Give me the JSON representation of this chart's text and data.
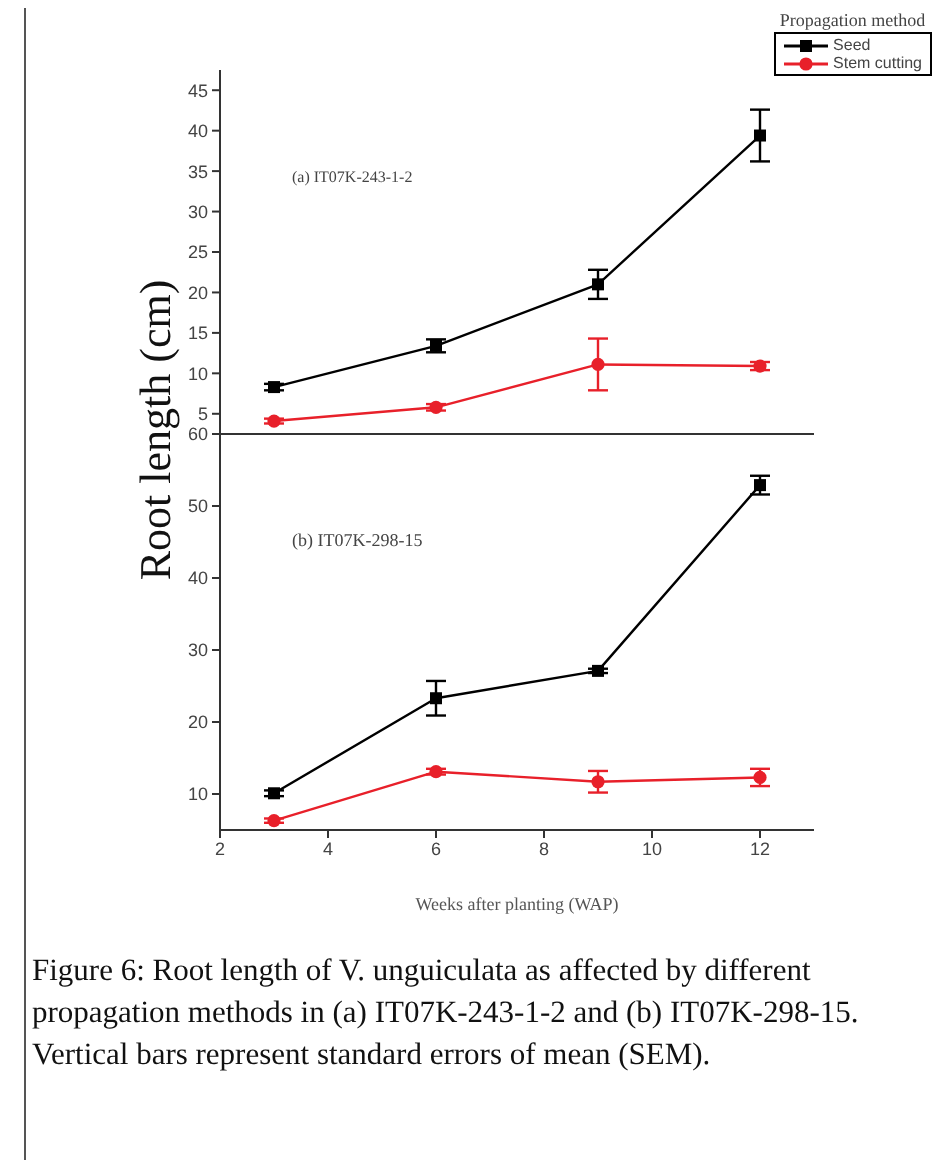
{
  "chart_data": [
    {
      "type": "line",
      "ylabel": "Root length (cm)",
      "legend_title": "Propagation method",
      "legend": "top right",
      "annotations": [
        "(a) IT07K-243-1-2"
      ],
      "x": [
        3,
        6,
        9,
        12
      ],
      "xlim": [
        2,
        13
      ],
      "xticks": [
        2,
        4,
        6,
        8,
        10,
        12
      ],
      "ylim": [
        2.5,
        47.5
      ],
      "yticks": [
        5,
        10,
        15,
        20,
        25,
        30,
        35,
        40,
        45
      ],
      "tick_labels": "y",
      "series": [
        {
          "name": "Seed",
          "color": "#000000",
          "marker": "square",
          "values": [
            8.3,
            13.4,
            21,
            39.4
          ],
          "errors": [
            0.4,
            0.8,
            1.8,
            3.2
          ]
        },
        {
          "name": "Stem cutting",
          "color": "#e8202a",
          "marker": "circle",
          "values": [
            4.1,
            5.8,
            11.1,
            10.9
          ],
          "errors": [
            0.3,
            0.4,
            3.2,
            0.5
          ]
        }
      ]
    },
    {
      "type": "line",
      "xlabel": "Weeks after planting (WAP)",
      "annotations": [
        "(b) IT07K-298-15",
        "Figure 6: Root length of V. unguiculata as affected by different propagation methods in (a) IT07K-243-1-2 and (b) IT07K-298-15. Vertical bars represent standard errors of mean (SEM)."
      ],
      "x": [
        3,
        6,
        9,
        12
      ],
      "xlim": [
        2,
        13
      ],
      "xticks": [
        2,
        4,
        6,
        8,
        10,
        12
      ],
      "ylim": [
        5,
        60
      ],
      "yticks": [
        10,
        20,
        30,
        40,
        50,
        60
      ],
      "series": [
        {
          "color": "#000000",
          "marker": "square",
          "values": [
            10.1,
            23.3,
            27.1,
            52.9
          ],
          "errors": [
            0.4,
            2.4,
            0.3,
            1.3
          ]
        },
        {
          "color": "#e8202a",
          "marker": "circle",
          "values": [
            6.3,
            13.1,
            11.7,
            12.3
          ],
          "errors": [
            0.3,
            0.4,
            1.5,
            1.2
          ]
        }
      ]
    }
  ]
}
